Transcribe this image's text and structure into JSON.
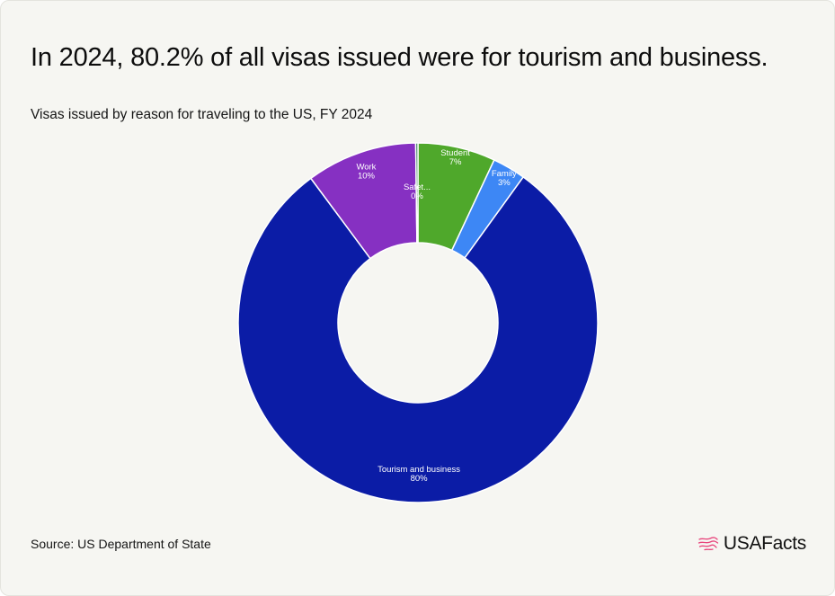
{
  "title": "In 2024, 80.2% of all visas issued were for tourism and business.",
  "subtitle": "Visas issued by reason for traveling to the US, FY 2024",
  "source": "Source: US Department of State",
  "brand": {
    "name": "USAFacts",
    "logo_icon": "us-map-icon",
    "logo_color": "#e8457c"
  },
  "chart_data": {
    "type": "pie",
    "style": "donut",
    "start_angle_deg": 0,
    "categories": [
      "Student",
      "Family",
      "Tourism and business",
      "Work",
      "Safety"
    ],
    "values": [
      7,
      3,
      80.2,
      10,
      0.2
    ],
    "labels": [
      "7%",
      "3%",
      "80%",
      "10%",
      "0%"
    ],
    "colors": [
      "#4fa82b",
      "#3d87f5",
      "#0b1ca6",
      "#8630c2",
      "#1f6d4d"
    ],
    "slice_label_texts": [
      "Student",
      "Family",
      "Tourism and business",
      "Work",
      "Safet..."
    ],
    "legend": "none"
  }
}
